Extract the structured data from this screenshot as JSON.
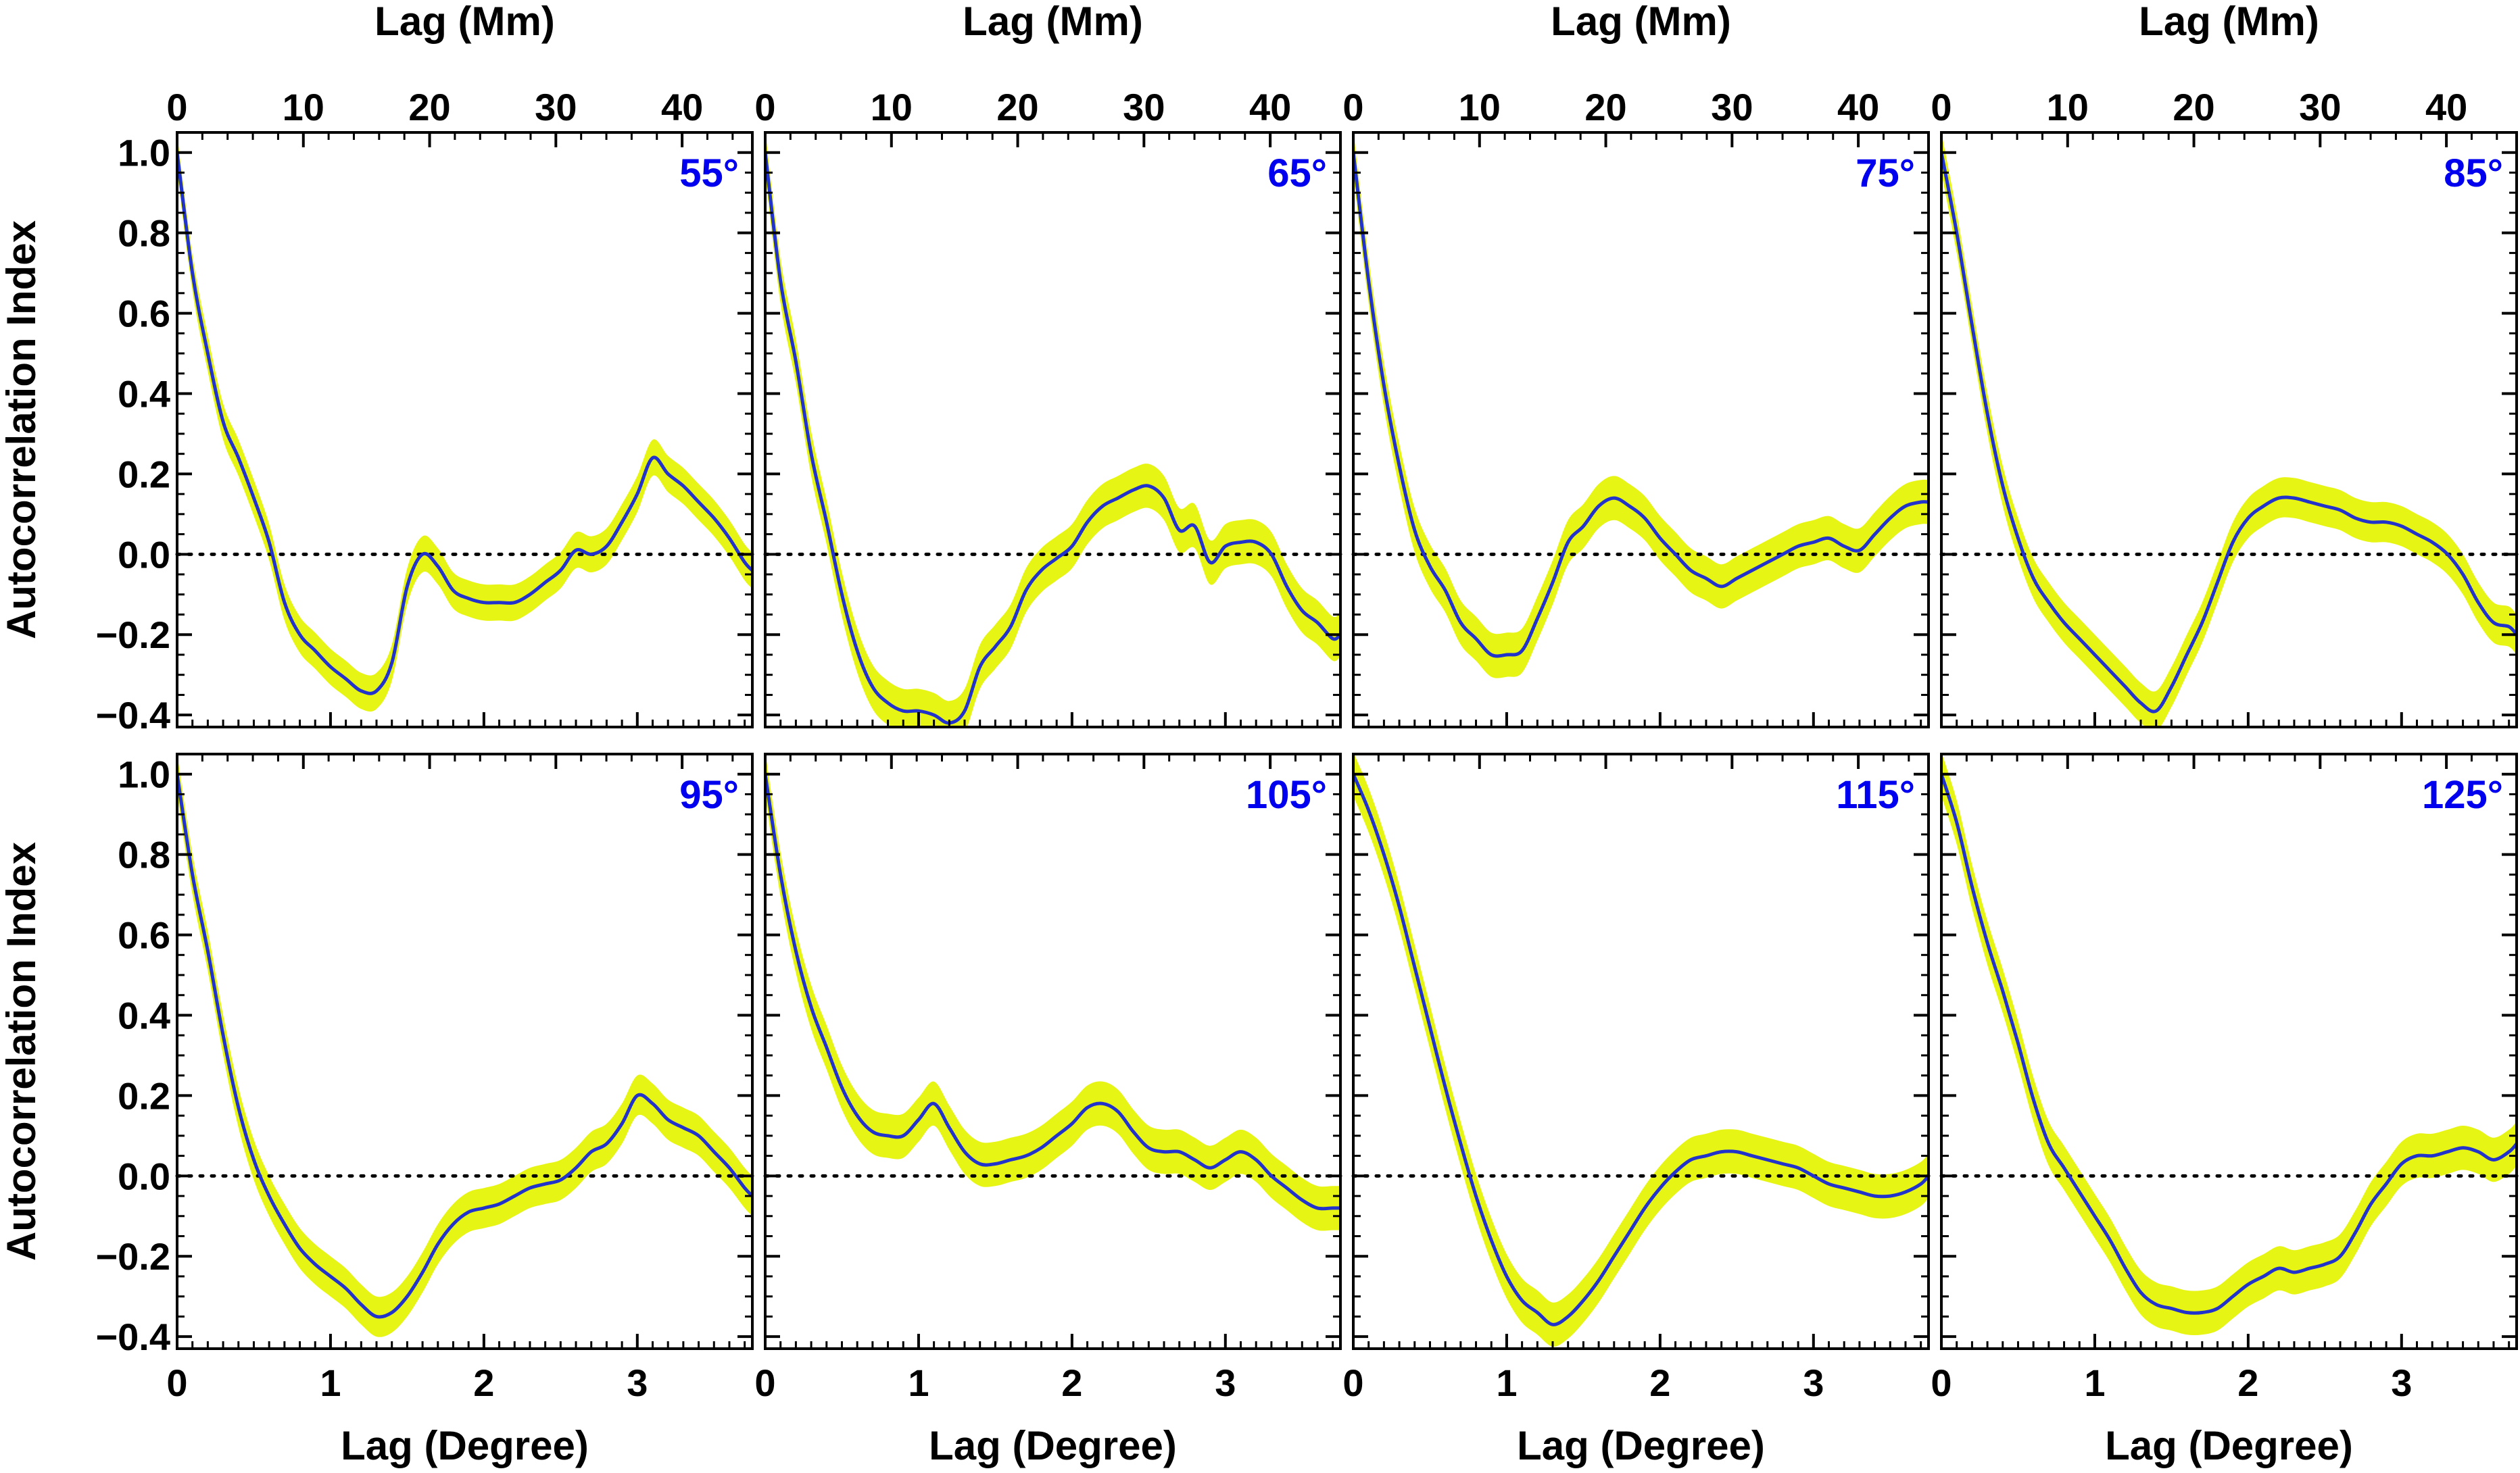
{
  "chart_data": {
    "type": "line",
    "layout": "2x4 grid of panels",
    "x_bottom_label": "Lag (Degree)",
    "x_top_label": "Lag (Mm)",
    "y_label": "Autocorrelation Index",
    "xlim_degree": [
      0,
      3.75
    ],
    "ylim": [
      -0.43,
      1.05
    ],
    "x_bottom_ticks": [
      0,
      1,
      2,
      3
    ],
    "x_top_ticks": [
      0,
      10,
      20,
      30,
      40
    ],
    "mm_per_degree": 12.15,
    "y_ticks": [
      1.0,
      0.8,
      0.6,
      0.4,
      0.2,
      0.0,
      -0.2,
      -0.4
    ],
    "y_tick_labels": [
      "1.0",
      "0.8",
      "0.6",
      "0.4",
      "0.2",
      "0.0",
      "−0.2",
      "−0.4"
    ],
    "reference_line_y": 0.0,
    "reference_line_style": "dotted",
    "line_color": "#2233cc",
    "band_color": "#e6f514",
    "angle_label_color": "#0000ee",
    "band_description": "shaded uncertainty band around each curve",
    "panels": [
      {
        "label": "55°",
        "band_halfwidth": 0.045,
        "x": [
          0,
          0.1,
          0.2,
          0.3,
          0.4,
          0.5,
          0.6,
          0.7,
          0.8,
          0.9,
          1.0,
          1.1,
          1.2,
          1.3,
          1.4,
          1.5,
          1.6,
          1.7,
          1.8,
          1.9,
          2.0,
          2.1,
          2.2,
          2.3,
          2.4,
          2.5,
          2.6,
          2.7,
          2.8,
          2.9,
          3.0,
          3.1,
          3.2,
          3.3,
          3.4,
          3.5,
          3.6,
          3.7,
          3.75
        ],
        "values": [
          1.0,
          0.7,
          0.5,
          0.33,
          0.24,
          0.14,
          0.03,
          -0.12,
          -0.2,
          -0.24,
          -0.28,
          -0.31,
          -0.34,
          -0.34,
          -0.27,
          -0.08,
          0.0,
          -0.03,
          -0.09,
          -0.11,
          -0.12,
          -0.12,
          -0.12,
          -0.1,
          -0.07,
          -0.04,
          0.01,
          0.0,
          0.02,
          0.08,
          0.15,
          0.24,
          0.2,
          0.17,
          0.13,
          0.09,
          0.04,
          -0.02,
          -0.04
        ]
      },
      {
        "label": "65°",
        "band_halfwidth": 0.055,
        "x": [
          0,
          0.1,
          0.2,
          0.3,
          0.4,
          0.5,
          0.6,
          0.7,
          0.8,
          0.9,
          1.0,
          1.1,
          1.2,
          1.3,
          1.4,
          1.5,
          1.6,
          1.7,
          1.8,
          1.9,
          2.0,
          2.1,
          2.2,
          2.3,
          2.4,
          2.5,
          2.6,
          2.7,
          2.8,
          2.9,
          3.0,
          3.1,
          3.2,
          3.3,
          3.4,
          3.5,
          3.6,
          3.7,
          3.75
        ],
        "values": [
          1.0,
          0.68,
          0.48,
          0.25,
          0.08,
          -0.1,
          -0.24,
          -0.33,
          -0.37,
          -0.39,
          -0.39,
          -0.4,
          -0.42,
          -0.39,
          -0.28,
          -0.23,
          -0.18,
          -0.09,
          -0.04,
          -0.01,
          0.02,
          0.08,
          0.12,
          0.14,
          0.16,
          0.17,
          0.14,
          0.06,
          0.07,
          -0.02,
          0.02,
          0.03,
          0.03,
          0.0,
          -0.08,
          -0.14,
          -0.17,
          -0.21,
          -0.2
        ]
      },
      {
        "label": "75°",
        "band_halfwidth": 0.055,
        "x": [
          0,
          0.1,
          0.2,
          0.3,
          0.4,
          0.5,
          0.6,
          0.7,
          0.8,
          0.9,
          1.0,
          1.1,
          1.2,
          1.3,
          1.4,
          1.5,
          1.6,
          1.7,
          1.8,
          1.9,
          2.0,
          2.1,
          2.2,
          2.3,
          2.4,
          2.5,
          2.6,
          2.7,
          2.8,
          2.9,
          3.0,
          3.1,
          3.2,
          3.3,
          3.4,
          3.5,
          3.6,
          3.7,
          3.75
        ],
        "values": [
          1.0,
          0.68,
          0.42,
          0.22,
          0.06,
          -0.03,
          -0.09,
          -0.17,
          -0.21,
          -0.25,
          -0.25,
          -0.24,
          -0.16,
          -0.07,
          0.03,
          0.07,
          0.12,
          0.14,
          0.12,
          0.09,
          0.04,
          0.0,
          -0.04,
          -0.06,
          -0.08,
          -0.06,
          -0.04,
          -0.02,
          0.0,
          0.02,
          0.03,
          0.04,
          0.02,
          0.01,
          0.05,
          0.09,
          0.12,
          0.13,
          0.13
        ]
      },
      {
        "label": "85°",
        "band_halfwidth": 0.05,
        "x": [
          0,
          0.1,
          0.2,
          0.3,
          0.4,
          0.5,
          0.6,
          0.7,
          0.8,
          0.9,
          1.0,
          1.1,
          1.2,
          1.3,
          1.4,
          1.5,
          1.6,
          1.7,
          1.8,
          1.9,
          2.0,
          2.1,
          2.2,
          2.3,
          2.4,
          2.5,
          2.6,
          2.7,
          2.8,
          2.9,
          3.0,
          3.1,
          3.2,
          3.3,
          3.4,
          3.5,
          3.6,
          3.7,
          3.75
        ],
        "values": [
          1.0,
          0.8,
          0.57,
          0.35,
          0.17,
          0.04,
          -0.06,
          -0.12,
          -0.17,
          -0.21,
          -0.25,
          -0.29,
          -0.33,
          -0.37,
          -0.39,
          -0.33,
          -0.25,
          -0.17,
          -0.07,
          0.03,
          0.09,
          0.12,
          0.14,
          0.14,
          0.13,
          0.12,
          0.11,
          0.09,
          0.08,
          0.08,
          0.07,
          0.05,
          0.03,
          0.0,
          -0.05,
          -0.12,
          -0.17,
          -0.18,
          -0.2
        ]
      },
      {
        "label": "95°",
        "band_halfwidth": 0.05,
        "x": [
          0,
          0.1,
          0.2,
          0.3,
          0.4,
          0.5,
          0.6,
          0.7,
          0.8,
          0.9,
          1.0,
          1.1,
          1.2,
          1.3,
          1.4,
          1.5,
          1.6,
          1.7,
          1.8,
          1.9,
          2.0,
          2.1,
          2.2,
          2.3,
          2.4,
          2.5,
          2.6,
          2.7,
          2.8,
          2.9,
          3.0,
          3.1,
          3.2,
          3.3,
          3.4,
          3.5,
          3.6,
          3.7,
          3.75
        ],
        "values": [
          1.0,
          0.75,
          0.56,
          0.35,
          0.17,
          0.04,
          -0.05,
          -0.12,
          -0.18,
          -0.22,
          -0.25,
          -0.28,
          -0.32,
          -0.35,
          -0.34,
          -0.3,
          -0.24,
          -0.17,
          -0.12,
          -0.09,
          -0.08,
          -0.07,
          -0.05,
          -0.03,
          -0.02,
          -0.01,
          0.02,
          0.06,
          0.08,
          0.13,
          0.2,
          0.18,
          0.14,
          0.12,
          0.1,
          0.06,
          0.02,
          -0.03,
          -0.05
        ]
      },
      {
        "label": "105°",
        "band_halfwidth": 0.055,
        "x": [
          0,
          0.1,
          0.2,
          0.3,
          0.4,
          0.5,
          0.6,
          0.7,
          0.8,
          0.9,
          1.0,
          1.1,
          1.2,
          1.3,
          1.4,
          1.5,
          1.6,
          1.7,
          1.8,
          1.9,
          2.0,
          2.1,
          2.2,
          2.3,
          2.4,
          2.5,
          2.6,
          2.7,
          2.8,
          2.9,
          3.0,
          3.1,
          3.2,
          3.3,
          3.4,
          3.5,
          3.6,
          3.7,
          3.75
        ],
        "values": [
          1.0,
          0.75,
          0.56,
          0.42,
          0.32,
          0.22,
          0.15,
          0.11,
          0.1,
          0.1,
          0.14,
          0.18,
          0.12,
          0.06,
          0.03,
          0.03,
          0.04,
          0.05,
          0.07,
          0.1,
          0.13,
          0.17,
          0.18,
          0.16,
          0.11,
          0.07,
          0.06,
          0.06,
          0.04,
          0.02,
          0.04,
          0.06,
          0.04,
          0.0,
          -0.03,
          -0.06,
          -0.08,
          -0.08,
          -0.08
        ]
      },
      {
        "label": "115°",
        "band_halfwidth": 0.055,
        "x": [
          0,
          0.1,
          0.2,
          0.3,
          0.4,
          0.5,
          0.6,
          0.7,
          0.8,
          0.9,
          1.0,
          1.1,
          1.2,
          1.3,
          1.4,
          1.5,
          1.6,
          1.7,
          1.8,
          1.9,
          2.0,
          2.1,
          2.2,
          2.3,
          2.4,
          2.5,
          2.6,
          2.7,
          2.8,
          2.9,
          3.0,
          3.1,
          3.2,
          3.3,
          3.4,
          3.5,
          3.6,
          3.7,
          3.75
        ],
        "values": [
          1.0,
          0.91,
          0.8,
          0.67,
          0.52,
          0.37,
          0.22,
          0.08,
          -0.05,
          -0.16,
          -0.25,
          -0.31,
          -0.34,
          -0.37,
          -0.35,
          -0.31,
          -0.26,
          -0.2,
          -0.14,
          -0.08,
          -0.03,
          0.01,
          0.04,
          0.05,
          0.06,
          0.06,
          0.05,
          0.04,
          0.03,
          0.02,
          0.0,
          -0.02,
          -0.03,
          -0.04,
          -0.05,
          -0.05,
          -0.04,
          -0.02,
          0.0
        ]
      },
      {
        "label": "125°",
        "band_halfwidth": 0.055,
        "x": [
          0,
          0.1,
          0.2,
          0.3,
          0.4,
          0.5,
          0.6,
          0.7,
          0.8,
          0.9,
          1.0,
          1.1,
          1.2,
          1.3,
          1.4,
          1.5,
          1.6,
          1.7,
          1.8,
          1.9,
          2.0,
          2.1,
          2.2,
          2.3,
          2.4,
          2.5,
          2.6,
          2.7,
          2.8,
          2.9,
          3.0,
          3.1,
          3.2,
          3.3,
          3.4,
          3.5,
          3.6,
          3.7,
          3.75
        ],
        "values": [
          1.0,
          0.88,
          0.72,
          0.58,
          0.46,
          0.33,
          0.19,
          0.08,
          0.02,
          -0.04,
          -0.1,
          -0.16,
          -0.23,
          -0.29,
          -0.32,
          -0.33,
          -0.34,
          -0.34,
          -0.33,
          -0.3,
          -0.27,
          -0.25,
          -0.23,
          -0.24,
          -0.23,
          -0.22,
          -0.2,
          -0.14,
          -0.07,
          -0.02,
          0.03,
          0.05,
          0.05,
          0.06,
          0.07,
          0.06,
          0.04,
          0.06,
          0.08
        ]
      }
    ]
  }
}
